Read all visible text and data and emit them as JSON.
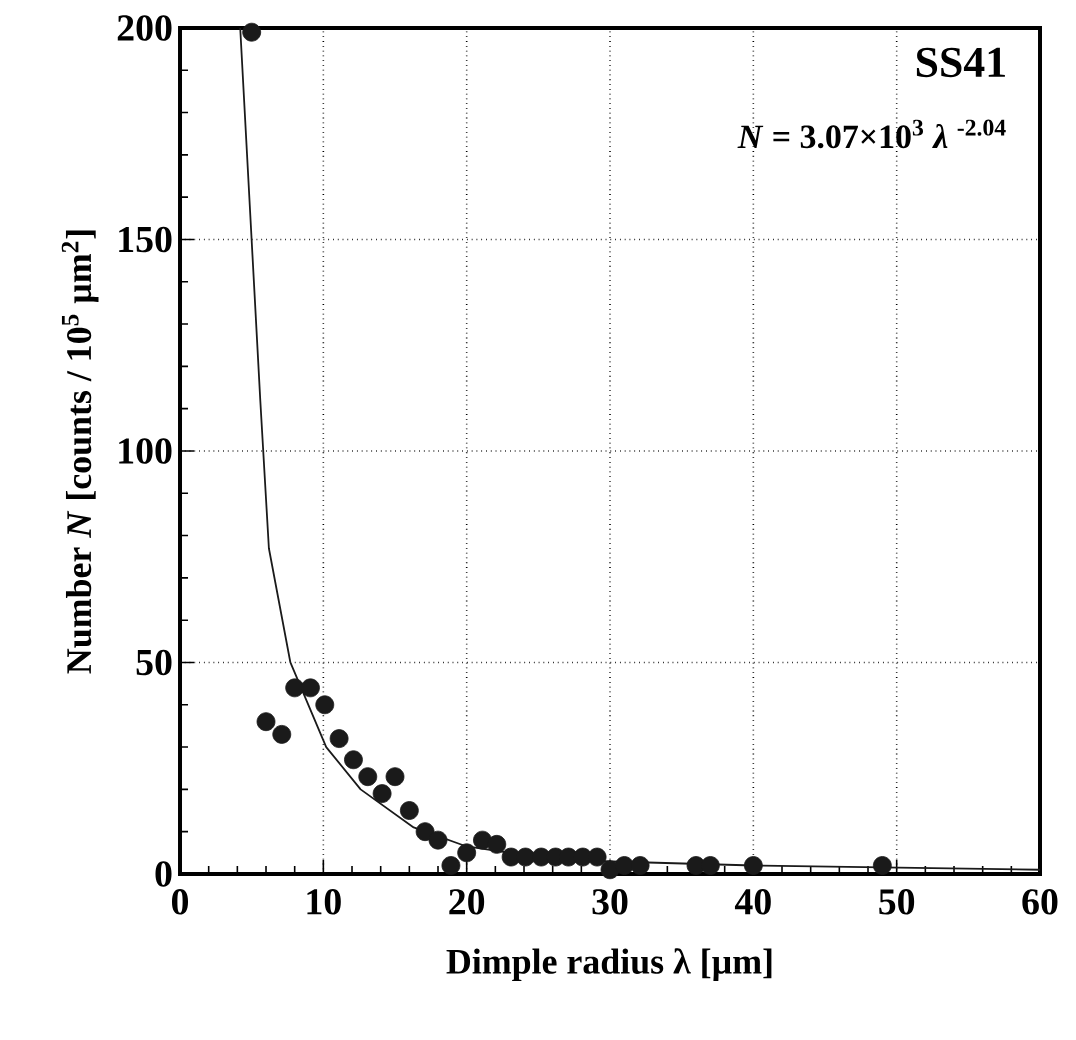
{
  "chart_data": {
    "type": "scatter",
    "title": "SS41",
    "xlabel": "Dimple radius λ [µm]",
    "ylabel": "Number *N* [counts / 10$^{5}$ µm$^{2}$]",
    "annotations": [
      "*N* = 3.07×10$^{3}$ *λ* $^{-2.04}$"
    ],
    "xlim": [
      0,
      60
    ],
    "ylim": [
      0,
      200
    ],
    "xticks": [
      0,
      10,
      20,
      30,
      40,
      50,
      60
    ],
    "yticks": [
      0,
      50,
      100,
      150,
      200
    ],
    "grid": true,
    "line_style": "solid",
    "series": [
      {
        "marker": "circle",
        "color": "#1a1a1a",
        "x": [
          5.0,
          6.0,
          7.1,
          8.0,
          9.1,
          10.1,
          11.1,
          12.1,
          13.1,
          14.1,
          15.0,
          16.0,
          17.1,
          18.0,
          18.9,
          20.0,
          21.1,
          22.1,
          23.1,
          24.1,
          25.2,
          26.2,
          27.1,
          28.1,
          29.1,
          30.0,
          31.0,
          32.1,
          36.0,
          37.0,
          40.0,
          49.0
        ],
        "values": [
          199,
          36,
          33,
          44,
          44,
          40,
          32,
          27,
          23,
          19,
          23,
          15,
          10,
          8,
          2,
          5,
          8,
          7,
          4,
          4,
          4,
          4,
          4,
          4,
          4,
          1,
          2,
          2,
          2,
          2,
          2,
          2
        ]
      },
      {
        "type": "line",
        "marker": "none",
        "color": "#1a1a1a",
        "x": [
          4.2,
          5.6,
          6.2,
          7.7,
          10.2,
          12.6,
          16.3,
          20.0,
          26.5,
          40.0,
          60.0
        ],
        "values": [
          200,
          112,
          77,
          50,
          30,
          20,
          11,
          6.5,
          3.3,
          2,
          1
        ]
      }
    ]
  }
}
